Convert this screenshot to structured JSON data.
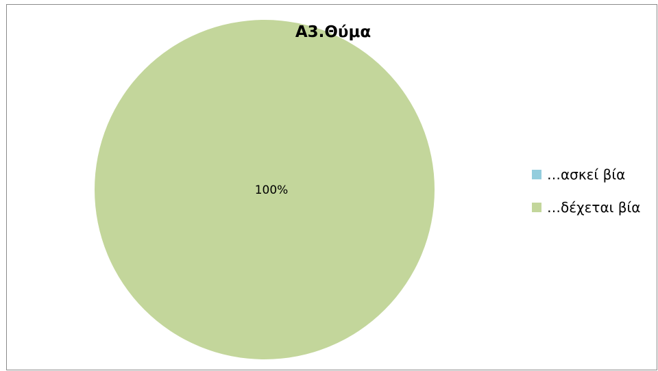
{
  "chart_data": {
    "type": "pie",
    "title": "Α3.Θύμα",
    "categories": [
      "…ασκεί βία",
      "…δέχεται βία"
    ],
    "values": [
      0,
      100
    ],
    "data_labels": [
      "",
      "100%"
    ],
    "colors": [
      "#93cddd",
      "#c3d69b"
    ],
    "legend_position": "right"
  }
}
